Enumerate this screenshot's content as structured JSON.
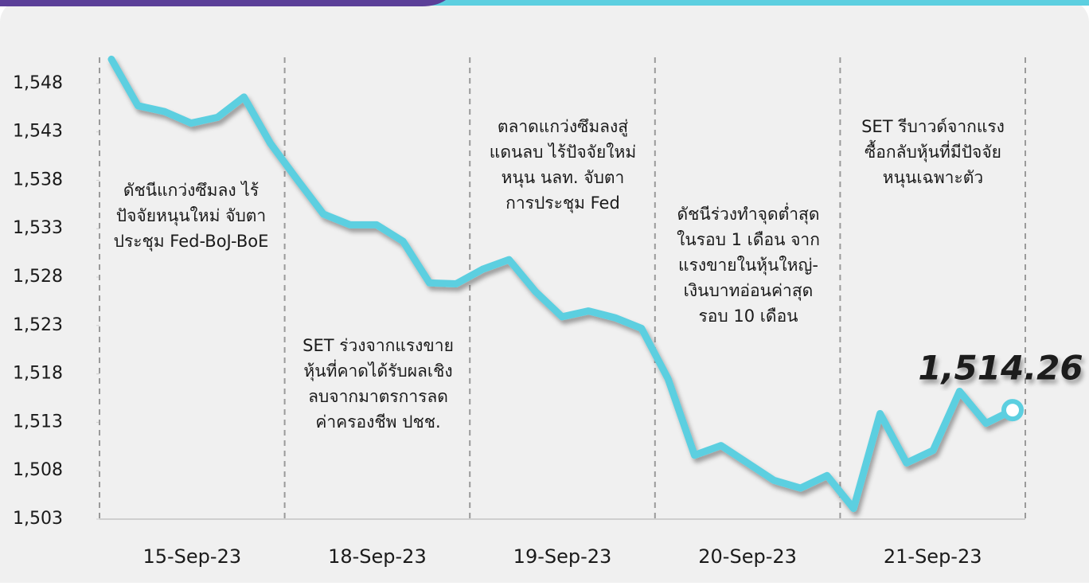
{
  "chart_data": {
    "type": "line",
    "color": "#5ccfe0",
    "day_labels": [
      "15-Sep-23",
      "18-Sep-23",
      "19-Sep-23",
      "20-Sep-23",
      "21-Sep-23"
    ],
    "annotations": [
      [
        "ดัชนีแกว่งซึมลง ไร้",
        "ปัจจัยหนุนใหม่ จับตา",
        "ประชุม Fed-BoJ-BoE"
      ],
      [
        "SET ร่วงจากแรงขาย",
        "หุ้นที่คาดได้รับผลเชิง",
        "ลบจากมาตรการลด",
        "ค่าครองชีพ ปชช."
      ],
      [
        "ตลาดแกว่งซึมลงสู่",
        "แดนลบ ไร้ปัจจัยใหม่",
        "หนุน นลท. จับตา",
        "การประชุม Fed"
      ],
      [
        "ดัชนีร่วงทำจุดต่ำสุด",
        "ในรอบ 1 เดือน จาก",
        "แรงขายในหุ้นใหญ่-",
        "เงินบาทอ่อนค่าสุด",
        "รอบ 10 เดือน"
      ],
      [
        "SET รีบาวด์จากแรง",
        "ซื้อกลับหุ้นที่มีปัจจัย",
        "หนุนเฉพาะตัว"
      ]
    ],
    "values": [
      1550.5,
      1545.7,
      1545.1,
      1543.9,
      1544.5,
      1546.6,
      1541.8,
      1538.1,
      1534.5,
      1533.4,
      1533.4,
      1531.7,
      1527.4,
      1527.3,
      1528.8,
      1529.8,
      1526.5,
      1523.9,
      1524.5,
      1523.8,
      1522.7,
      1517.5,
      1509.6,
      1510.6,
      1508.8,
      1507.0,
      1506.2,
      1507.5,
      1504.1,
      1513.9,
      1508.8,
      1510.1,
      1516.2,
      1512.9,
      1514.26
    ],
    "value_labels": [
      null,
      null,
      null,
      null,
      null,
      null,
      null,
      null,
      null,
      null,
      null,
      null,
      null,
      null,
      null,
      null,
      null,
      null,
      null,
      null,
      null,
      null,
      null,
      null,
      null,
      null,
      null,
      null,
      null,
      null,
      null,
      null,
      null,
      null,
      "1,514.26"
    ],
    "ylim": [
      1503,
      1550.7
    ],
    "yticks": [
      {
        "value": 1503,
        "label": "1,503"
      },
      {
        "value": 1508,
        "label": "1,508"
      },
      {
        "value": 1513,
        "label": "1,513"
      },
      {
        "value": 1518,
        "label": "1,518"
      },
      {
        "value": 1523,
        "label": "1,523"
      },
      {
        "value": 1528,
        "label": "1,528"
      },
      {
        "value": 1533,
        "label": "1,533"
      },
      {
        "value": 1538,
        "label": "1,538"
      },
      {
        "value": 1543,
        "label": "1,543"
      },
      {
        "value": 1548,
        "label": "1,548"
      }
    ]
  }
}
